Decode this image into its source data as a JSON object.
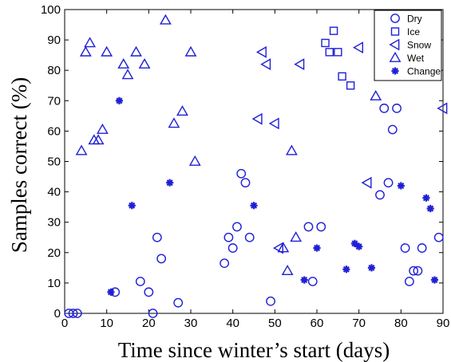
{
  "chart_data": {
    "type": "scatter",
    "xlabel": "Time since winter’s start (days)",
    "ylabel": "Samples correct (%)",
    "xlim": [
      0,
      90
    ],
    "ylim": [
      0,
      100
    ],
    "xticks": [
      0,
      10,
      20,
      30,
      40,
      50,
      60,
      70,
      80,
      90
    ],
    "yticks": [
      0,
      10,
      20,
      30,
      40,
      50,
      60,
      70,
      80,
      90,
      100
    ],
    "grid": false,
    "legend_position": "top-right",
    "marker_color": "#1f1fd6",
    "series": [
      {
        "name": "Dry",
        "marker": "circle",
        "points": [
          [
            1,
            0
          ],
          [
            2,
            0
          ],
          [
            3,
            0
          ],
          [
            12,
            7
          ],
          [
            18,
            10.5
          ],
          [
            20,
            7
          ],
          [
            21,
            0
          ],
          [
            22,
            25
          ],
          [
            23,
            18
          ],
          [
            27,
            3.5
          ],
          [
            38,
            16.5
          ],
          [
            39,
            25
          ],
          [
            40,
            21.5
          ],
          [
            41,
            28.5
          ],
          [
            42,
            46
          ],
          [
            43,
            43
          ],
          [
            44,
            25
          ],
          [
            49,
            4
          ],
          [
            58,
            28.5
          ],
          [
            59,
            10.5
          ],
          [
            61,
            28.5
          ],
          [
            75,
            39
          ],
          [
            76,
            67.5
          ],
          [
            77,
            43
          ],
          [
            78,
            60.5
          ],
          [
            79,
            67.5
          ],
          [
            81,
            21.5
          ],
          [
            82,
            10.5
          ],
          [
            83,
            14
          ],
          [
            84,
            14
          ],
          [
            85,
            21.5
          ],
          [
            89,
            25
          ]
        ]
      },
      {
        "name": "Ice",
        "marker": "square",
        "points": [
          [
            62,
            89
          ],
          [
            63,
            86
          ],
          [
            64,
            93
          ],
          [
            65,
            86
          ],
          [
            66,
            78
          ],
          [
            68,
            75
          ]
        ]
      },
      {
        "name": "Snow",
        "marker": "triangle-left",
        "points": [
          [
            46,
            64
          ],
          [
            47,
            86
          ],
          [
            48,
            82
          ],
          [
            50,
            62.5
          ],
          [
            51,
            21.5
          ],
          [
            56,
            82
          ],
          [
            70,
            87.5
          ],
          [
            72,
            43
          ],
          [
            90,
            67.5
          ]
        ]
      },
      {
        "name": "Wet",
        "marker": "triangle-up",
        "points": [
          [
            4,
            53.5
          ],
          [
            5,
            86
          ],
          [
            6,
            89
          ],
          [
            7,
            57
          ],
          [
            8,
            57
          ],
          [
            9,
            60.5
          ],
          [
            10,
            86
          ],
          [
            14,
            82
          ],
          [
            15,
            78.5
          ],
          [
            17,
            86
          ],
          [
            19,
            82
          ],
          [
            24,
            96.5
          ],
          [
            26,
            62.5
          ],
          [
            28,
            66.5
          ],
          [
            30,
            86
          ],
          [
            31,
            50
          ],
          [
            52,
            21.5
          ],
          [
            53,
            14
          ],
          [
            54,
            53.5
          ],
          [
            55,
            25
          ],
          [
            74,
            71.5
          ]
        ]
      },
      {
        "name": "Change",
        "marker": "asterisk",
        "points": [
          [
            11,
            7
          ],
          [
            13,
            70
          ],
          [
            16,
            35.5
          ],
          [
            25,
            43
          ],
          [
            45,
            35.5
          ],
          [
            57,
            11
          ],
          [
            60,
            21.5
          ],
          [
            67,
            14.5
          ],
          [
            69,
            23
          ],
          [
            70,
            22
          ],
          [
            73,
            15
          ],
          [
            80,
            42
          ],
          [
            86,
            38
          ],
          [
            87,
            34.5
          ],
          [
            88,
            11
          ]
        ]
      }
    ]
  }
}
